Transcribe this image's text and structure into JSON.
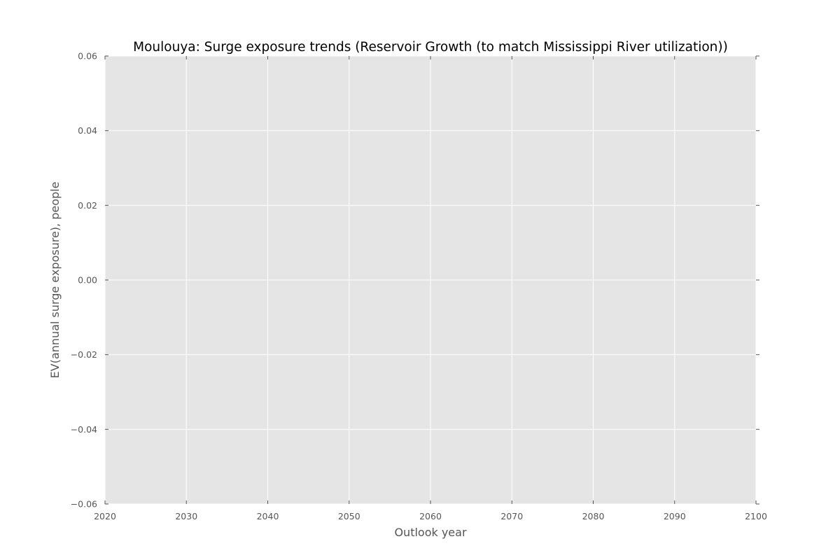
{
  "chart_data": {
    "type": "line",
    "title": "Moulouya: Surge exposure trends (Reservoir Growth (to match Mississippi River utilization))",
    "xlabel": "Outlook year",
    "ylabel": "EV(annual surge exposure), people",
    "xlim": [
      2020,
      2100
    ],
    "ylim": [
      -0.06,
      0.06
    ],
    "x_ticks": [
      2020,
      2030,
      2040,
      2050,
      2060,
      2070,
      2080,
      2090,
      2100
    ],
    "y_ticks": [
      -0.06,
      -0.04,
      -0.02,
      0.0,
      0.02,
      0.04,
      0.06
    ],
    "y_tick_labels": [
      "−0.06",
      "−0.04",
      "−0.02",
      "0.00",
      "0.02",
      "0.04",
      "0.06"
    ],
    "grid": true,
    "series": [],
    "colors": {
      "plot_background": "#e5e5e5",
      "grid": "#ffffff",
      "tick": "#555555"
    }
  }
}
